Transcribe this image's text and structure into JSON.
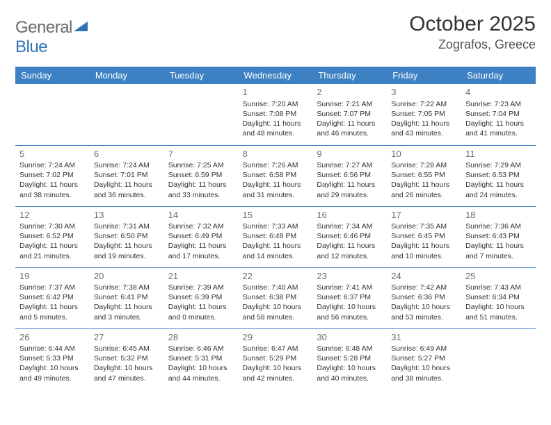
{
  "brand": {
    "name_a": "General",
    "name_b": "Blue"
  },
  "title": "October 2025",
  "location": "Zografos, Greece",
  "colors": {
    "header_bg": "#3d81c3",
    "header_text": "#ffffff",
    "rule": "#3d81c3",
    "body_text": "#333333",
    "daynum": "#6b6b6b",
    "brand_gray": "#6a6a6a",
    "brand_blue": "#2f72b8",
    "page_bg": "#ffffff"
  },
  "fonts": {
    "title_size": 30,
    "location_size": 18,
    "header_size": 13,
    "cell_size": 10.5,
    "daynum_size": 13
  },
  "day_headers": [
    "Sunday",
    "Monday",
    "Tuesday",
    "Wednesday",
    "Thursday",
    "Friday",
    "Saturday"
  ],
  "weeks": [
    [
      null,
      null,
      null,
      {
        "n": "1",
        "sr": "Sunrise: 7:20 AM",
        "ss": "Sunset: 7:08 PM",
        "dl": "Daylight: 11 hours and 48 minutes."
      },
      {
        "n": "2",
        "sr": "Sunrise: 7:21 AM",
        "ss": "Sunset: 7:07 PM",
        "dl": "Daylight: 11 hours and 46 minutes."
      },
      {
        "n": "3",
        "sr": "Sunrise: 7:22 AM",
        "ss": "Sunset: 7:05 PM",
        "dl": "Daylight: 11 hours and 43 minutes."
      },
      {
        "n": "4",
        "sr": "Sunrise: 7:23 AM",
        "ss": "Sunset: 7:04 PM",
        "dl": "Daylight: 11 hours and 41 minutes."
      }
    ],
    [
      {
        "n": "5",
        "sr": "Sunrise: 7:24 AM",
        "ss": "Sunset: 7:02 PM",
        "dl": "Daylight: 11 hours and 38 minutes."
      },
      {
        "n": "6",
        "sr": "Sunrise: 7:24 AM",
        "ss": "Sunset: 7:01 PM",
        "dl": "Daylight: 11 hours and 36 minutes."
      },
      {
        "n": "7",
        "sr": "Sunrise: 7:25 AM",
        "ss": "Sunset: 6:59 PM",
        "dl": "Daylight: 11 hours and 33 minutes."
      },
      {
        "n": "8",
        "sr": "Sunrise: 7:26 AM",
        "ss": "Sunset: 6:58 PM",
        "dl": "Daylight: 11 hours and 31 minutes."
      },
      {
        "n": "9",
        "sr": "Sunrise: 7:27 AM",
        "ss": "Sunset: 6:56 PM",
        "dl": "Daylight: 11 hours and 29 minutes."
      },
      {
        "n": "10",
        "sr": "Sunrise: 7:28 AM",
        "ss": "Sunset: 6:55 PM",
        "dl": "Daylight: 11 hours and 26 minutes."
      },
      {
        "n": "11",
        "sr": "Sunrise: 7:29 AM",
        "ss": "Sunset: 6:53 PM",
        "dl": "Daylight: 11 hours and 24 minutes."
      }
    ],
    [
      {
        "n": "12",
        "sr": "Sunrise: 7:30 AM",
        "ss": "Sunset: 6:52 PM",
        "dl": "Daylight: 11 hours and 21 minutes."
      },
      {
        "n": "13",
        "sr": "Sunrise: 7:31 AM",
        "ss": "Sunset: 6:50 PM",
        "dl": "Daylight: 11 hours and 19 minutes."
      },
      {
        "n": "14",
        "sr": "Sunrise: 7:32 AM",
        "ss": "Sunset: 6:49 PM",
        "dl": "Daylight: 11 hours and 17 minutes."
      },
      {
        "n": "15",
        "sr": "Sunrise: 7:33 AM",
        "ss": "Sunset: 6:48 PM",
        "dl": "Daylight: 11 hours and 14 minutes."
      },
      {
        "n": "16",
        "sr": "Sunrise: 7:34 AM",
        "ss": "Sunset: 6:46 PM",
        "dl": "Daylight: 11 hours and 12 minutes."
      },
      {
        "n": "17",
        "sr": "Sunrise: 7:35 AM",
        "ss": "Sunset: 6:45 PM",
        "dl": "Daylight: 11 hours and 10 minutes."
      },
      {
        "n": "18",
        "sr": "Sunrise: 7:36 AM",
        "ss": "Sunset: 6:43 PM",
        "dl": "Daylight: 11 hours and 7 minutes."
      }
    ],
    [
      {
        "n": "19",
        "sr": "Sunrise: 7:37 AM",
        "ss": "Sunset: 6:42 PM",
        "dl": "Daylight: 11 hours and 5 minutes."
      },
      {
        "n": "20",
        "sr": "Sunrise: 7:38 AM",
        "ss": "Sunset: 6:41 PM",
        "dl": "Daylight: 11 hours and 3 minutes."
      },
      {
        "n": "21",
        "sr": "Sunrise: 7:39 AM",
        "ss": "Sunset: 6:39 PM",
        "dl": "Daylight: 11 hours and 0 minutes."
      },
      {
        "n": "22",
        "sr": "Sunrise: 7:40 AM",
        "ss": "Sunset: 6:38 PM",
        "dl": "Daylight: 10 hours and 58 minutes."
      },
      {
        "n": "23",
        "sr": "Sunrise: 7:41 AM",
        "ss": "Sunset: 6:37 PM",
        "dl": "Daylight: 10 hours and 56 minutes."
      },
      {
        "n": "24",
        "sr": "Sunrise: 7:42 AM",
        "ss": "Sunset: 6:36 PM",
        "dl": "Daylight: 10 hours and 53 minutes."
      },
      {
        "n": "25",
        "sr": "Sunrise: 7:43 AM",
        "ss": "Sunset: 6:34 PM",
        "dl": "Daylight: 10 hours and 51 minutes."
      }
    ],
    [
      {
        "n": "26",
        "sr": "Sunrise: 6:44 AM",
        "ss": "Sunset: 5:33 PM",
        "dl": "Daylight: 10 hours and 49 minutes."
      },
      {
        "n": "27",
        "sr": "Sunrise: 6:45 AM",
        "ss": "Sunset: 5:32 PM",
        "dl": "Daylight: 10 hours and 47 minutes."
      },
      {
        "n": "28",
        "sr": "Sunrise: 6:46 AM",
        "ss": "Sunset: 5:31 PM",
        "dl": "Daylight: 10 hours and 44 minutes."
      },
      {
        "n": "29",
        "sr": "Sunrise: 6:47 AM",
        "ss": "Sunset: 5:29 PM",
        "dl": "Daylight: 10 hours and 42 minutes."
      },
      {
        "n": "30",
        "sr": "Sunrise: 6:48 AM",
        "ss": "Sunset: 5:28 PM",
        "dl": "Daylight: 10 hours and 40 minutes."
      },
      {
        "n": "31",
        "sr": "Sunrise: 6:49 AM",
        "ss": "Sunset: 5:27 PM",
        "dl": "Daylight: 10 hours and 38 minutes."
      },
      null
    ]
  ]
}
